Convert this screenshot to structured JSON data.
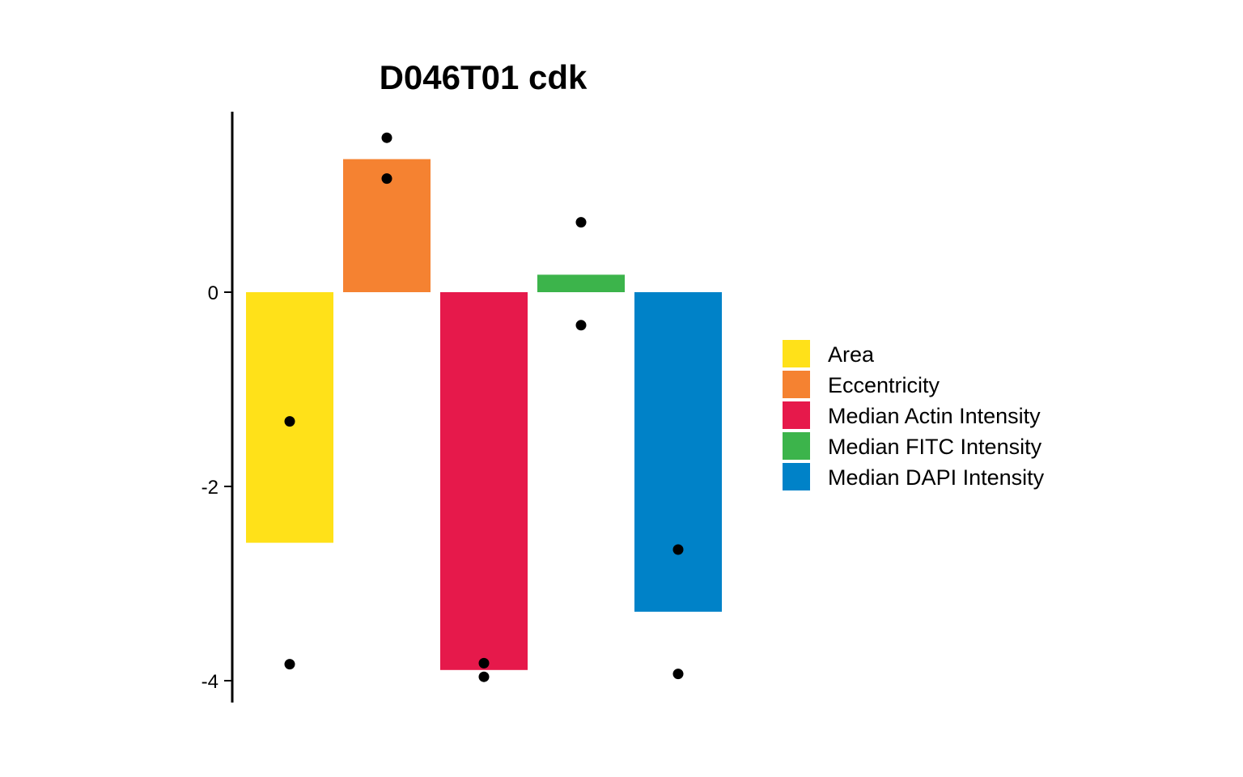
{
  "chart_data": {
    "type": "bar",
    "title": "D046T01 cdk",
    "xlabel": "",
    "ylabel": "",
    "ylim": [
      -4.2,
      1.85
    ],
    "yticks": [
      0,
      -2,
      -4
    ],
    "grid": false,
    "legend_position": "right",
    "categories": [
      "Area",
      "Eccentricity",
      "Median Actin Intensity",
      "Median FITC Intensity",
      "Median DAPI Intensity"
    ],
    "colors": [
      "#FFE119",
      "#F58231",
      "#E6194B",
      "#3CB44B",
      "#0082C8"
    ],
    "values": [
      -2.58,
      1.37,
      -3.89,
      0.18,
      -3.29
    ],
    "points": [
      [
        -1.33,
        -3.83
      ],
      [
        1.59,
        1.17
      ],
      [
        -3.82,
        -3.96
      ],
      [
        0.72,
        -0.34
      ],
      [
        -2.65,
        -3.93
      ]
    ]
  }
}
